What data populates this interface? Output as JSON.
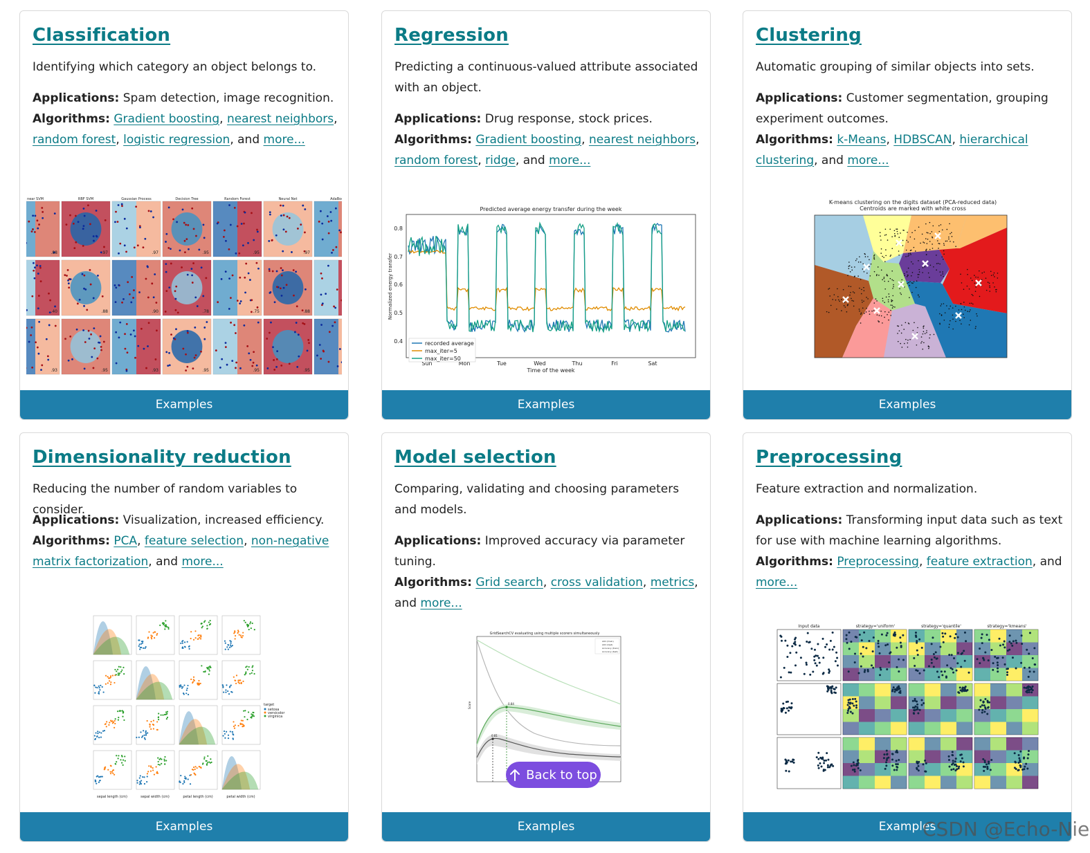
{
  "cards": [
    {
      "title": "Classification",
      "description": "Identifying which category an object belongs to.",
      "applications_label": "Applications:",
      "applications": "Spam detection, image recognition.",
      "algorithms_label": "Algorithms:",
      "algorithms": [
        "Gradient boosting",
        "nearest neighbors",
        "random forest",
        "logistic regression"
      ],
      "and_text": ", and",
      "more": "more...",
      "button": "Examples",
      "figure": {
        "columns": [
          "near SVM",
          "RBF SVM",
          "Gaussian Process",
          "Decision Tree",
          "Random Forest",
          "Neural Net",
          "AdaBoost"
        ],
        "scores": [
          [
            ".88",
            ".97",
            ".97",
            ".95",
            ".95",
            ".97",
            ""
          ],
          [
            ".40",
            ".88",
            ".90",
            ".78",
            ".75",
            ".88",
            ""
          ],
          [
            ".93",
            ".95",
            ".93",
            ".95",
            ".95",
            ".95",
            ""
          ]
        ]
      }
    },
    {
      "title": "Regression",
      "description": "Predicting a continuous-valued attribute associated with an object.",
      "applications_label": "Applications:",
      "applications": "Drug response, stock prices.",
      "algorithms_label": "Algorithms:",
      "algorithms": [
        "Gradient boosting",
        "nearest neighbors",
        "random forest",
        "ridge"
      ],
      "and_text": ", and",
      "more": "more...",
      "button": "Examples",
      "figure": {
        "title": "Predicted average energy transfer during the week",
        "xlabel": "Time of the week",
        "ylabel": "Normalized energy transfer",
        "xticks": [
          "Sun",
          "Mon",
          "Tue",
          "Wed",
          "Thu",
          "Fri",
          "Sat"
        ],
        "yticks": [
          "0.4",
          "0.5",
          "0.6",
          "0.7",
          "0.8"
        ],
        "legend": [
          "recorded average",
          "max_iter=5",
          "max_iter=50"
        ]
      }
    },
    {
      "title": "Clustering",
      "description": "Automatic grouping of similar objects into sets.",
      "applications_label": "Applications:",
      "applications": "Customer segmentation, grouping experiment outcomes.",
      "algorithms_label": "Algorithms:",
      "algorithms": [
        "k-Means",
        "HDBSCAN",
        "hierarchical clustering"
      ],
      "and_text": ", and",
      "more": "more...",
      "button": "Examples",
      "figure": {
        "title_line1": "K-means clustering on the digits dataset (PCA-reduced data)",
        "title_line2": "Centroids are marked with white cross"
      }
    },
    {
      "title": "Dimensionality reduction",
      "description": "Reducing the number of random variables to consider.",
      "applications_label": "Applications:",
      "applications": "Visualization, increased efficiency.",
      "algorithms_label": "Algorithms:",
      "algorithms": [
        "PCA",
        "feature selection",
        "non-negative matrix factorization"
      ],
      "and_text": ", and",
      "more": "more...",
      "button": "Examples",
      "figure": {
        "legend_title": "target",
        "legend": [
          "setosa",
          "versicolor",
          "virginica"
        ],
        "xlabels": [
          "sepal length (cm)",
          "sepal width (cm)",
          "petal length (cm)",
          "petal width (cm)"
        ]
      }
    },
    {
      "title": "Model selection",
      "description": "Comparing, validating and choosing parameters and models.",
      "applications_label": "Applications:",
      "applications": "Improved accuracy via parameter tuning.",
      "algorithms_label": "Algorithms:",
      "algorithms": [
        "Grid search",
        "cross validation",
        "metrics"
      ],
      "and_text": ", and",
      "more": "more...",
      "button": "Examples",
      "figure": {
        "title": "GridSearchCV evaluating using multiple scorers simultaneously",
        "legend": [
          "AUC (train)",
          "AUC (test)",
          "Accuracy (train)",
          "Accuracy (test)"
        ],
        "markers": [
          "0.84",
          "0.81"
        ],
        "ylabel": "Score"
      }
    },
    {
      "title": "Preprocessing",
      "description": "Feature extraction and normalization.",
      "applications_label": "Applications:",
      "applications": "Transforming input data such as text for use with machine learning algorithms.",
      "algorithms_label": "Algorithms:",
      "algorithms": [
        "Preprocessing",
        "feature extraction"
      ],
      "and_text": ", and",
      "more": "more...",
      "button": "Examples",
      "figure": {
        "columns": [
          "Input data",
          "strategy='uniform'",
          "strategy='quantile'",
          "strategy='kmeans'"
        ]
      }
    }
  ],
  "back_to_top": {
    "icon": "arrow-up-icon",
    "label": "Back to top"
  },
  "watermark": "CSDN @Echo-Nie",
  "colors": {
    "title": "#0b7b86",
    "button": "#1f7fab",
    "back_to_top": "#7c4ddf"
  }
}
